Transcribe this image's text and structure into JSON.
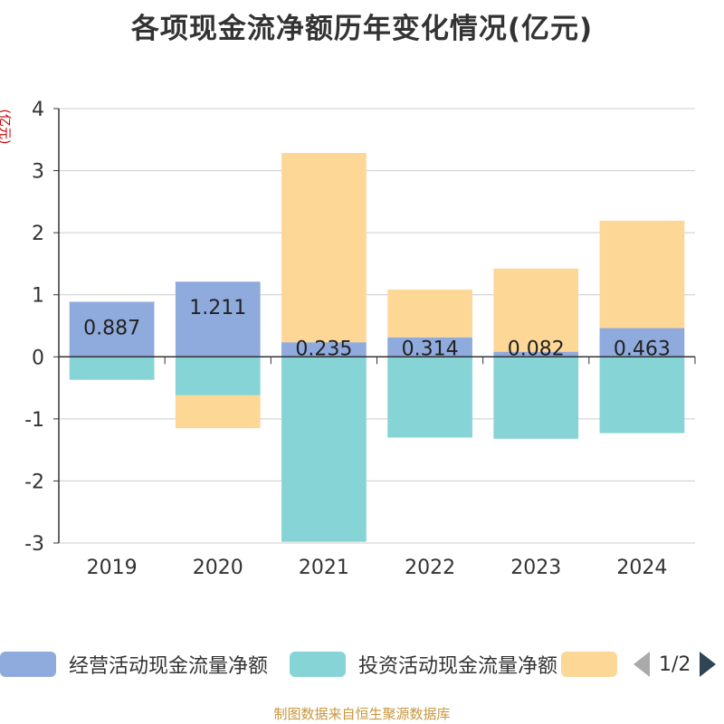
{
  "title": "各项现金流净额历年变化情况(亿元)",
  "chart_data": {
    "type": "bar",
    "stacked": true,
    "ylabel": "(亿元)",
    "ylim": [
      -3,
      4
    ],
    "yticks": [
      -3,
      -2,
      -1,
      0,
      1,
      2,
      3,
      4
    ],
    "grid": true,
    "legend_position": "bottom",
    "categories": [
      "2019",
      "2020",
      "2021",
      "2022",
      "2023",
      "2024"
    ],
    "series": [
      {
        "name": "经营活动现金流量净额",
        "color": "#8faadc",
        "values": [
          0.887,
          1.211,
          0.235,
          0.314,
          0.082,
          0.463
        ],
        "labels": [
          "0.887",
          "1.211",
          "0.235",
          "0.314",
          "0.082",
          "0.463"
        ]
      },
      {
        "name": "投资活动现金流量净额",
        "color": "#86d4d6",
        "values": [
          -0.37,
          -0.62,
          -2.98,
          -1.3,
          -1.32,
          -1.23
        ]
      },
      {
        "name": "",
        "color": "#fdd796",
        "values": [
          0,
          -0.53,
          3.05,
          0.77,
          1.34,
          1.73
        ]
      }
    ]
  },
  "legend": {
    "items": [
      {
        "label": "经营活动现金流量净额",
        "color": "#8faadc"
      },
      {
        "label": "投资活动现金流量净额",
        "color": "#86d4d6"
      },
      {
        "label": "",
        "color": "#fdd796"
      }
    ],
    "page": "1/2"
  },
  "source": "制图数据来自恒生聚源数据库"
}
